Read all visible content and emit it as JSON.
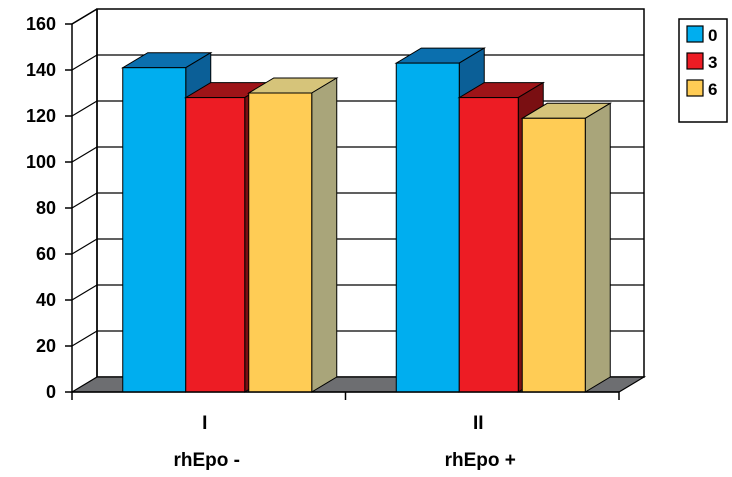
{
  "chart_data": {
    "type": "bar",
    "style": "3d-clustered",
    "categories": [
      "I",
      "II"
    ],
    "category_sublabels": [
      "rhEpo -",
      "rhEpo +"
    ],
    "series": [
      {
        "name": "0",
        "values": [
          141,
          143
        ],
        "color": "#00AEEF",
        "side_color": "#0B5F97",
        "top_color": "#0B6FAE"
      },
      {
        "name": "3",
        "values": [
          128,
          128
        ],
        "color": "#ED1C24",
        "side_color": "#7A0F12",
        "top_color": "#9E1418"
      },
      {
        "name": "6",
        "values": [
          130,
          119
        ],
        "color": "#FFCC55",
        "side_color": "#A9A57A",
        "top_color": "#D6C47A"
      }
    ],
    "y_ticks": [
      "0",
      "20",
      "40",
      "60",
      "80",
      "100",
      "120",
      "140",
      "160"
    ],
    "ylim": [
      0,
      160
    ],
    "y_step": 20,
    "grid": true,
    "legend_position": "top-right",
    "floor_color": "#6D6E71",
    "title": "",
    "xlabel": "",
    "ylabel": ""
  }
}
